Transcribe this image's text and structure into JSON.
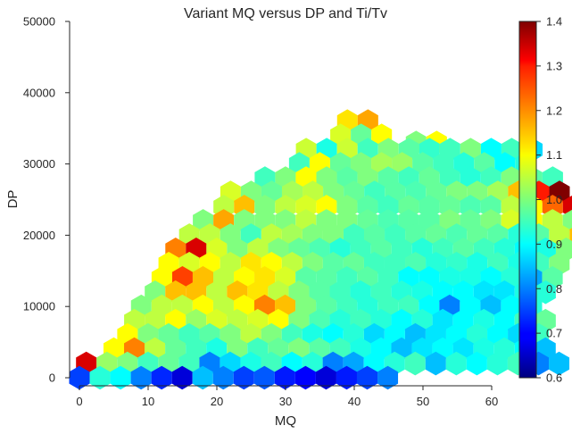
{
  "chart_data": {
    "type": "hexbin",
    "title": "Variant MQ versus DP and Ti/Tv",
    "xlabel": "MQ",
    "ylabel": "DP",
    "xlim": [
      0,
      60
    ],
    "ylim": [
      0,
      50000
    ],
    "x_ticks": [
      "0",
      "10",
      "20",
      "30",
      "40",
      "50",
      "60"
    ],
    "y_ticks": [
      "0",
      "10000",
      "20000",
      "30000",
      "40000",
      "50000"
    ],
    "colorbar": {
      "range": [
        0.6,
        1.4
      ],
      "ticks": [
        "0.6",
        "0.7",
        "0.8",
        "0.9",
        "1.0",
        "1.1",
        "1.2",
        "1.3",
        "1.4"
      ],
      "colormap": "jet"
    },
    "grid": false,
    "hex_rows": [
      {
        "dp": 36000,
        "mq_start": 39,
        "values": [
          1.12,
          1.17
        ]
      },
      {
        "dp": 34000,
        "mq_start": 38,
        "values": [
          1.07,
          0.98,
          1.1
        ]
      },
      {
        "dp": 33000,
        "mq_start": 49,
        "values": [
          1.0,
          1.1
        ]
      },
      {
        "dp": 32000,
        "mq_start": 33,
        "values": [
          1.06,
          0.92,
          1.06,
          0.95,
          1.0,
          0.97,
          0.94,
          0.95,
          1.0,
          0.9,
          0.95,
          0.87
        ]
      },
      {
        "dp": 30000,
        "mq_start": 32,
        "values": [
          0.95,
          1.1,
          0.98,
          1.0,
          1.03,
          1.02,
          0.97,
          0.95,
          0.93,
          0.97,
          0.9,
          0.93
        ]
      },
      {
        "dp": 28000,
        "mq_start": 27,
        "values": [
          0.95,
          1.0,
          1.1,
          1.0,
          0.97,
          1.0,
          0.97,
          0.95,
          0.98,
          0.95,
          0.93,
          0.95,
          1.0,
          0.97,
          0.95
        ]
      },
      {
        "dp": 26000,
        "mq_start": 22,
        "values": [
          1.07,
          1.0,
          0.98,
          1.03,
          1.05,
          1.0,
          0.98,
          0.95,
          0.97,
          0.96,
          0.98,
          1.0,
          1.0,
          1.03,
          1.15,
          1.28,
          1.4
        ]
      },
      {
        "dp": 24000,
        "mq_start": 21,
        "values": [
          1.05,
          1.15,
          1.0,
          1.05,
          1.07,
          1.1,
          1.0,
          0.97,
          0.95,
          0.98,
          0.97,
          0.98,
          0.96,
          0.97,
          1.05,
          1.1,
          1.22,
          1.33,
          1.4
        ]
      },
      {
        "dp": 22000,
        "mq_start": 18,
        "values": [
          1.0,
          1.17,
          1.0,
          1.0,
          1.0,
          1.05,
          1.0,
          1.0,
          0.98,
          0.96,
          0.97,
          0.97,
          1.0,
          0.98,
          1.0,
          1.07,
          1.1,
          1.05,
          1.0,
          1.05
        ]
      },
      {
        "dp": 20000,
        "mq_start": 16,
        "values": [
          1.05,
          1.05,
          1.0,
          0.95,
          1.05,
          1.03,
          1.0,
          1.0,
          0.95,
          0.97,
          0.95,
          0.97,
          0.98,
          0.96,
          0.98,
          0.97,
          0.93,
          0.97,
          1.05,
          1.15
        ]
      },
      {
        "dp": 18000,
        "mq_start": 14,
        "values": [
          1.2,
          1.33,
          1.07,
          1.0,
          1.05,
          1.0,
          0.98,
          0.96,
          0.93,
          0.95,
          0.97,
          0.95,
          0.93,
          0.95,
          0.97,
          0.95,
          0.93,
          0.9,
          0.92,
          1.0
        ]
      },
      {
        "dp": 16000,
        "mq_start": 13,
        "values": [
          1.1,
          1.07,
          1.1,
          1.05,
          1.12,
          1.1,
          1.05,
          1.0,
          0.97,
          0.98,
          0.95,
          0.95,
          0.96,
          0.93,
          0.94,
          0.92,
          0.95,
          0.92,
          0.95,
          1.0
        ]
      },
      {
        "dp": 14000,
        "mq_start": 12,
        "values": [
          1.1,
          1.25,
          1.15,
          1.05,
          1.1,
          1.12,
          1.07,
          0.97,
          0.97,
          0.95,
          0.97,
          0.95,
          0.9,
          0.9,
          0.92,
          0.92,
          0.9,
          0.93,
          0.83,
          0.97
        ]
      },
      {
        "dp": 12000,
        "mq_start": 11,
        "values": [
          1.0,
          1.15,
          1.15,
          1.05,
          1.15,
          1.12,
          1.05,
          1.0,
          0.97,
          0.95,
          0.93,
          0.95,
          0.93,
          0.92,
          0.9,
          0.9,
          0.88,
          0.88,
          0.92,
          0.93
        ]
      },
      {
        "dp": 10000,
        "mq_start": 9,
        "values": [
          1.0,
          1.05,
          1.05,
          1.1,
          1.05,
          1.1,
          1.2,
          1.15,
          1.0,
          0.97,
          0.95,
          0.93,
          0.95,
          0.95,
          0.9,
          0.8,
          0.9,
          0.85,
          0.9,
          0.93
        ]
      },
      {
        "dp": 8000,
        "mq_start": 8,
        "values": [
          1.05,
          1.05,
          1.1,
          1.02,
          1.07,
          1.05,
          1.07,
          1.1,
          1.0,
          0.96,
          0.93,
          0.95,
          0.93,
          0.9,
          0.93,
          0.88,
          0.9,
          0.92,
          0.9,
          0.95,
          0.98
        ]
      },
      {
        "dp": 6000,
        "mq_start": 7,
        "values": [
          1.1,
          1.0,
          0.98,
          0.95,
          0.97,
          1.0,
          1.05,
          1.0,
          0.95,
          0.92,
          0.9,
          0.93,
          0.87,
          0.9,
          0.85,
          0.88,
          0.9,
          0.93,
          0.9,
          0.87,
          0.95
        ]
      },
      {
        "dp": 4000,
        "mq_start": 5,
        "values": [
          1.1,
          1.2,
          1.05,
          0.98,
          0.95,
          0.92,
          1.0,
          0.95,
          0.98,
          1.0,
          0.97,
          0.95,
          0.92,
          0.9,
          0.85,
          0.88,
          0.9,
          0.88,
          0.92,
          0.93,
          0.9,
          0.85
        ]
      },
      {
        "dp": 2000,
        "mq_start": 1,
        "values": [
          1.33,
          1.02,
          1.0,
          0.95,
          0.98,
          0.95,
          0.8,
          0.87,
          0.92,
          0.95,
          0.9,
          0.93,
          0.8,
          0.83,
          0.9,
          0.93,
          0.95,
          0.85,
          0.93,
          0.9,
          0.93,
          0.95,
          0.8,
          0.85
        ]
      },
      {
        "dp": 0,
        "mq_start": 0,
        "values": [
          0.75,
          0.93,
          0.9,
          0.8,
          0.73,
          0.67,
          0.85,
          0.8,
          0.75,
          0.77,
          0.72,
          0.7,
          0.67,
          0.72,
          0.75,
          0.8
        ]
      }
    ]
  }
}
